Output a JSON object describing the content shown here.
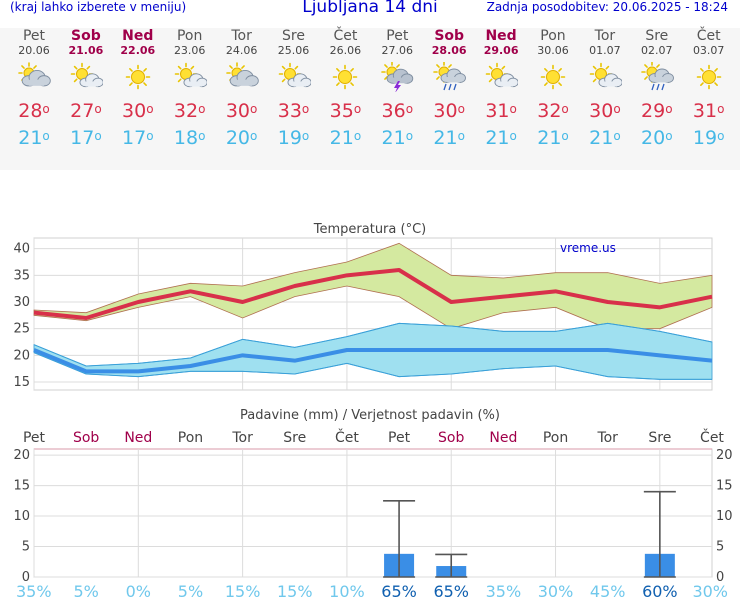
{
  "header": {
    "left": "(kraj lahko izberete v meniju)",
    "title": "Ljubljana 14 dni",
    "right": "Zadnja posodobitev: 20.06.2025 - 18:24"
  },
  "days": [
    {
      "name": "Pet",
      "date": "20.06",
      "weekend": false,
      "icon": "partly-cloudy-icon",
      "max": "28",
      "min": "21"
    },
    {
      "name": "Sob",
      "date": "21.06",
      "weekend": true,
      "icon": "sun-cloud-icon",
      "max": "27",
      "min": "17"
    },
    {
      "name": "Ned",
      "date": "22.06",
      "weekend": true,
      "icon": "sun-icon",
      "max": "30",
      "min": "17"
    },
    {
      "name": "Pon",
      "date": "23.06",
      "weekend": false,
      "icon": "sun-cloud-icon",
      "max": "32",
      "min": "18"
    },
    {
      "name": "Tor",
      "date": "24.06",
      "weekend": false,
      "icon": "partly-cloudy-icon",
      "max": "30",
      "min": "20"
    },
    {
      "name": "Sre",
      "date": "25.06",
      "weekend": false,
      "icon": "sun-cloud-icon",
      "max": "33",
      "min": "19"
    },
    {
      "name": "Čet",
      "date": "26.06",
      "weekend": false,
      "icon": "sun-icon",
      "max": "35",
      "min": "21"
    },
    {
      "name": "Pet",
      "date": "27.06",
      "weekend": false,
      "icon": "thunderstorm-icon",
      "max": "36",
      "min": "21"
    },
    {
      "name": "Sob",
      "date": "28.06",
      "weekend": true,
      "icon": "sun-rain-icon",
      "max": "30",
      "min": "21"
    },
    {
      "name": "Ned",
      "date": "29.06",
      "weekend": true,
      "icon": "sun-cloud-icon",
      "max": "31",
      "min": "21"
    },
    {
      "name": "Pon",
      "date": "30.06",
      "weekend": false,
      "icon": "sun-icon",
      "max": "32",
      "min": "21"
    },
    {
      "name": "Tor",
      "date": "01.07",
      "weekend": false,
      "icon": "sun-cloud-icon",
      "max": "30",
      "min": "21"
    },
    {
      "name": "Sre",
      "date": "02.07",
      "weekend": false,
      "icon": "sun-rain-icon",
      "max": "29",
      "min": "20"
    },
    {
      "name": "Čet",
      "date": "03.07",
      "weekend": false,
      "icon": "sun-icon",
      "max": "31",
      "min": "19"
    }
  ],
  "degree_symbol": "o",
  "colors": {
    "max": "#d8304a",
    "min": "#45b8e6",
    "weekend": "#a0004a",
    "header": "#0000cc",
    "max_band": "#d4e9a0",
    "min_band": "#9fe0f0",
    "rain_bar": "#3a8ee6",
    "rain_pct": "#45b8e6"
  },
  "chart_data": [
    {
      "type": "line",
      "title": "Temperatura (°C)",
      "watermark": "vreme.us",
      "x": [
        1,
        2,
        3,
        4,
        5,
        6,
        7,
        8,
        9,
        10,
        11,
        12,
        13,
        14
      ],
      "ylim": [
        13.5,
        42
      ],
      "yticks": [
        "15",
        "20",
        "25",
        "30",
        "35",
        "40"
      ],
      "grid": true,
      "series": [
        {
          "role": "max",
          "values": [
            28,
            27,
            30,
            32,
            30,
            33,
            35,
            36,
            30,
            31,
            32,
            30,
            29,
            31
          ],
          "band_low": [
            27.5,
            26.5,
            29,
            31,
            27,
            31,
            33,
            31,
            25,
            28,
            29,
            25,
            25,
            29
          ],
          "band_high": [
            28.5,
            28,
            31.5,
            33.5,
            33,
            35.5,
            37.5,
            41,
            35,
            34.5,
            35.5,
            35.5,
            33.5,
            35
          ]
        },
        {
          "role": "min",
          "values": [
            21,
            17,
            17,
            18,
            20,
            19,
            21,
            21,
            21,
            21,
            21,
            21,
            20,
            19
          ],
          "band_low": [
            20.5,
            16.5,
            16,
            17,
            17,
            16.5,
            18.5,
            16,
            16.5,
            17.5,
            18,
            16,
            15.5,
            15.5
          ],
          "band_high": [
            22,
            18,
            18.5,
            19.5,
            23,
            21.5,
            23.5,
            26,
            25.5,
            24.5,
            24.5,
            26,
            24.5,
            22.5
          ]
        }
      ]
    },
    {
      "type": "bar",
      "title": "Padavine (mm) / Verjetnost padavin (%)",
      "categories": [
        "Pet",
        "Sob",
        "Ned",
        "Pon",
        "Tor",
        "Sre",
        "Čet",
        "Pet",
        "Sob",
        "Ned",
        "Pon",
        "Tor",
        "Sre",
        "Čet"
      ],
      "weekend": [
        false,
        true,
        true,
        false,
        false,
        false,
        false,
        false,
        true,
        true,
        false,
        false,
        false,
        false
      ],
      "values": [
        0,
        0,
        0,
        0,
        0,
        0,
        0,
        3.8,
        1.8,
        0,
        0,
        0,
        3.8,
        0
      ],
      "error_high": [
        null,
        null,
        null,
        null,
        null,
        null,
        null,
        12.5,
        3.7,
        null,
        null,
        null,
        14,
        null
      ],
      "error_low": [
        null,
        null,
        null,
        null,
        null,
        null,
        null,
        0,
        0,
        null,
        null,
        null,
        0,
        null
      ],
      "probability": [
        "35%",
        "5%",
        "0%",
        "5%",
        "15%",
        "15%",
        "10%",
        "65%",
        "65%",
        "35%",
        "30%",
        "45%",
        "60%",
        "30%"
      ],
      "probability_bold": [
        false,
        false,
        false,
        false,
        false,
        false,
        false,
        true,
        true,
        false,
        false,
        false,
        true,
        false
      ],
      "ylim": [
        0,
        21
      ],
      "yticks": [
        "0",
        "5",
        "10",
        "15",
        "20"
      ],
      "grid": true
    }
  ]
}
